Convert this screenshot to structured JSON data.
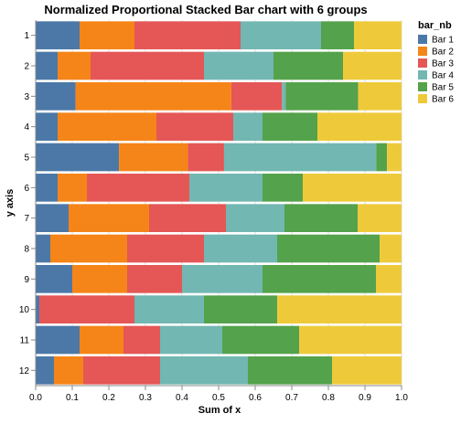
{
  "chart_data": {
    "type": "bar",
    "orientation": "horizontal",
    "stacked": "normalized",
    "title": "Normalized Proportional Stacked Bar chart with 6 groups",
    "xlabel": "Sum of x",
    "ylabel": "y axis",
    "xlim": [
      0,
      1
    ],
    "x_ticks": [
      "0.0",
      "0.1",
      "0.2",
      "0.3",
      "0.4",
      "0.5",
      "0.6",
      "0.7",
      "0.8",
      "0.9",
      "1.0"
    ],
    "grid": true,
    "legend": {
      "title": "bar_nb",
      "position": "top-right"
    },
    "categories": [
      "1",
      "2",
      "3",
      "4",
      "5",
      "6",
      "7",
      "8",
      "9",
      "10",
      "11",
      "12"
    ],
    "series": [
      {
        "name": "Bar 1",
        "color": "#4c78a8",
        "values": [
          0.12,
          0.06,
          0.11,
          0.06,
          0.23,
          0.06,
          0.09,
          0.04,
          0.1,
          0.01,
          0.12,
          0.05
        ]
      },
      {
        "name": "Bar 2",
        "color": "#f58518",
        "values": [
          0.15,
          0.09,
          0.43,
          0.27,
          0.19,
          0.08,
          0.22,
          0.21,
          0.15,
          0.0,
          0.12,
          0.08
        ]
      },
      {
        "name": "Bar 3",
        "color": "#e45756",
        "values": [
          0.29,
          0.31,
          0.14,
          0.21,
          0.1,
          0.28,
          0.21,
          0.21,
          0.15,
          0.26,
          0.1,
          0.21
        ]
      },
      {
        "name": "Bar 4",
        "color": "#72b7b2",
        "values": [
          0.22,
          0.19,
          0.01,
          0.08,
          0.42,
          0.2,
          0.16,
          0.2,
          0.22,
          0.19,
          0.17,
          0.24
        ]
      },
      {
        "name": "Bar 5",
        "color": "#54a24b",
        "values": [
          0.09,
          0.19,
          0.2,
          0.15,
          0.03,
          0.11,
          0.2,
          0.28,
          0.31,
          0.2,
          0.21,
          0.23
        ]
      },
      {
        "name": "Bar 6",
        "color": "#eeca3b",
        "values": [
          0.13,
          0.16,
          0.12,
          0.23,
          0.04,
          0.27,
          0.12,
          0.06,
          0.07,
          0.34,
          0.28,
          0.19
        ]
      }
    ]
  }
}
